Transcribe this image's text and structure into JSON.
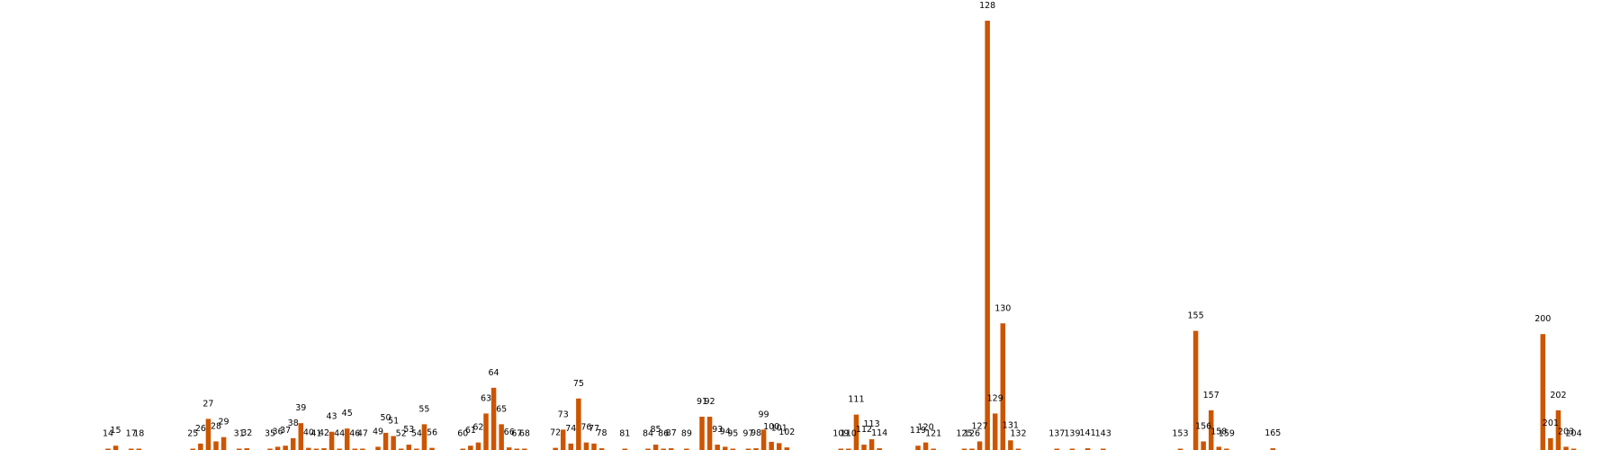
{
  "chart_data": {
    "type": "bar",
    "title": "",
    "xlabel": "",
    "ylabel": "",
    "color": "#cc5500",
    "axes_visible": false,
    "grid": false,
    "x_min": 0,
    "x_max": 210,
    "ylim": [
      0,
      2000
    ],
    "bars": [
      {
        "x": 14,
        "value": 5
      },
      {
        "x": 15,
        "value": 20
      },
      {
        "x": 17,
        "value": 2
      },
      {
        "x": 18,
        "value": 5
      },
      {
        "x": 25,
        "value": 3
      },
      {
        "x": 26,
        "value": 30
      },
      {
        "x": 27,
        "value": 145
      },
      {
        "x": 28,
        "value": 40
      },
      {
        "x": 29,
        "value": 60
      },
      {
        "x": 31,
        "value": 5
      },
      {
        "x": 32,
        "value": 8
      },
      {
        "x": 35,
        "value": 3
      },
      {
        "x": 36,
        "value": 15
      },
      {
        "x": 37,
        "value": 20
      },
      {
        "x": 38,
        "value": 55
      },
      {
        "x": 39,
        "value": 125
      },
      {
        "x": 40,
        "value": 10
      },
      {
        "x": 41,
        "value": 3
      },
      {
        "x": 42,
        "value": 8
      },
      {
        "x": 43,
        "value": 85
      },
      {
        "x": 44,
        "value": 5
      },
      {
        "x": 45,
        "value": 100
      },
      {
        "x": 46,
        "value": 3
      },
      {
        "x": 47,
        "value": 5
      },
      {
        "x": 49,
        "value": 15
      },
      {
        "x": 50,
        "value": 80
      },
      {
        "x": 51,
        "value": 65
      },
      {
        "x": 52,
        "value": 5
      },
      {
        "x": 53,
        "value": 25
      },
      {
        "x": 54,
        "value": 3
      },
      {
        "x": 55,
        "value": 120
      },
      {
        "x": 56,
        "value": 10
      },
      {
        "x": 60,
        "value": 3
      },
      {
        "x": 61,
        "value": 20
      },
      {
        "x": 62,
        "value": 35
      },
      {
        "x": 63,
        "value": 170
      },
      {
        "x": 64,
        "value": 290
      },
      {
        "x": 65,
        "value": 120
      },
      {
        "x": 66,
        "value": 12
      },
      {
        "x": 67,
        "value": 3
      },
      {
        "x": 68,
        "value": 3
      },
      {
        "x": 72,
        "value": 10
      },
      {
        "x": 73,
        "value": 95
      },
      {
        "x": 74,
        "value": 30
      },
      {
        "x": 75,
        "value": 240
      },
      {
        "x": 76,
        "value": 35
      },
      {
        "x": 77,
        "value": 30
      },
      {
        "x": 78,
        "value": 8
      },
      {
        "x": 81,
        "value": 3
      },
      {
        "x": 84,
        "value": 5
      },
      {
        "x": 85,
        "value": 25
      },
      {
        "x": 86,
        "value": 3
      },
      {
        "x": 87,
        "value": 8
      },
      {
        "x": 89,
        "value": 3
      },
      {
        "x": 91,
        "value": 155
      },
      {
        "x": 92,
        "value": 155
      },
      {
        "x": 93,
        "value": 25
      },
      {
        "x": 94,
        "value": 15
      },
      {
        "x": 95,
        "value": 3
      },
      {
        "x": 97,
        "value": 3
      },
      {
        "x": 98,
        "value": 8
      },
      {
        "x": 99,
        "value": 95
      },
      {
        "x": 100,
        "value": 38
      },
      {
        "x": 101,
        "value": 32
      },
      {
        "x": 102,
        "value": 12
      },
      {
        "x": 109,
        "value": 2
      },
      {
        "x": 110,
        "value": 3
      },
      {
        "x": 111,
        "value": 165
      },
      {
        "x": 112,
        "value": 25
      },
      {
        "x": 113,
        "value": 50
      },
      {
        "x": 114,
        "value": 8
      },
      {
        "x": 119,
        "value": 20
      },
      {
        "x": 120,
        "value": 35
      },
      {
        "x": 121,
        "value": 3
      },
      {
        "x": 125,
        "value": 5
      },
      {
        "x": 126,
        "value": 5
      },
      {
        "x": 127,
        "value": 40
      },
      {
        "x": 128,
        "value": 2000
      },
      {
        "x": 129,
        "value": 170
      },
      {
        "x": 130,
        "value": 590
      },
      {
        "x": 131,
        "value": 45
      },
      {
        "x": 132,
        "value": 3
      },
      {
        "x": 137,
        "value": 5
      },
      {
        "x": 139,
        "value": 3
      },
      {
        "x": 141,
        "value": 8
      },
      {
        "x": 143,
        "value": 3
      },
      {
        "x": 153,
        "value": 3
      },
      {
        "x": 155,
        "value": 555
      },
      {
        "x": 156,
        "value": 40
      },
      {
        "x": 157,
        "value": 185
      },
      {
        "x": 158,
        "value": 15
      },
      {
        "x": 159,
        "value": 3
      },
      {
        "x": 165,
        "value": 8
      },
      {
        "x": 200,
        "value": 540
      },
      {
        "x": 201,
        "value": 55
      },
      {
        "x": 202,
        "value": 185
      },
      {
        "x": 203,
        "value": 15
      },
      {
        "x": 204,
        "value": 3
      }
    ]
  }
}
